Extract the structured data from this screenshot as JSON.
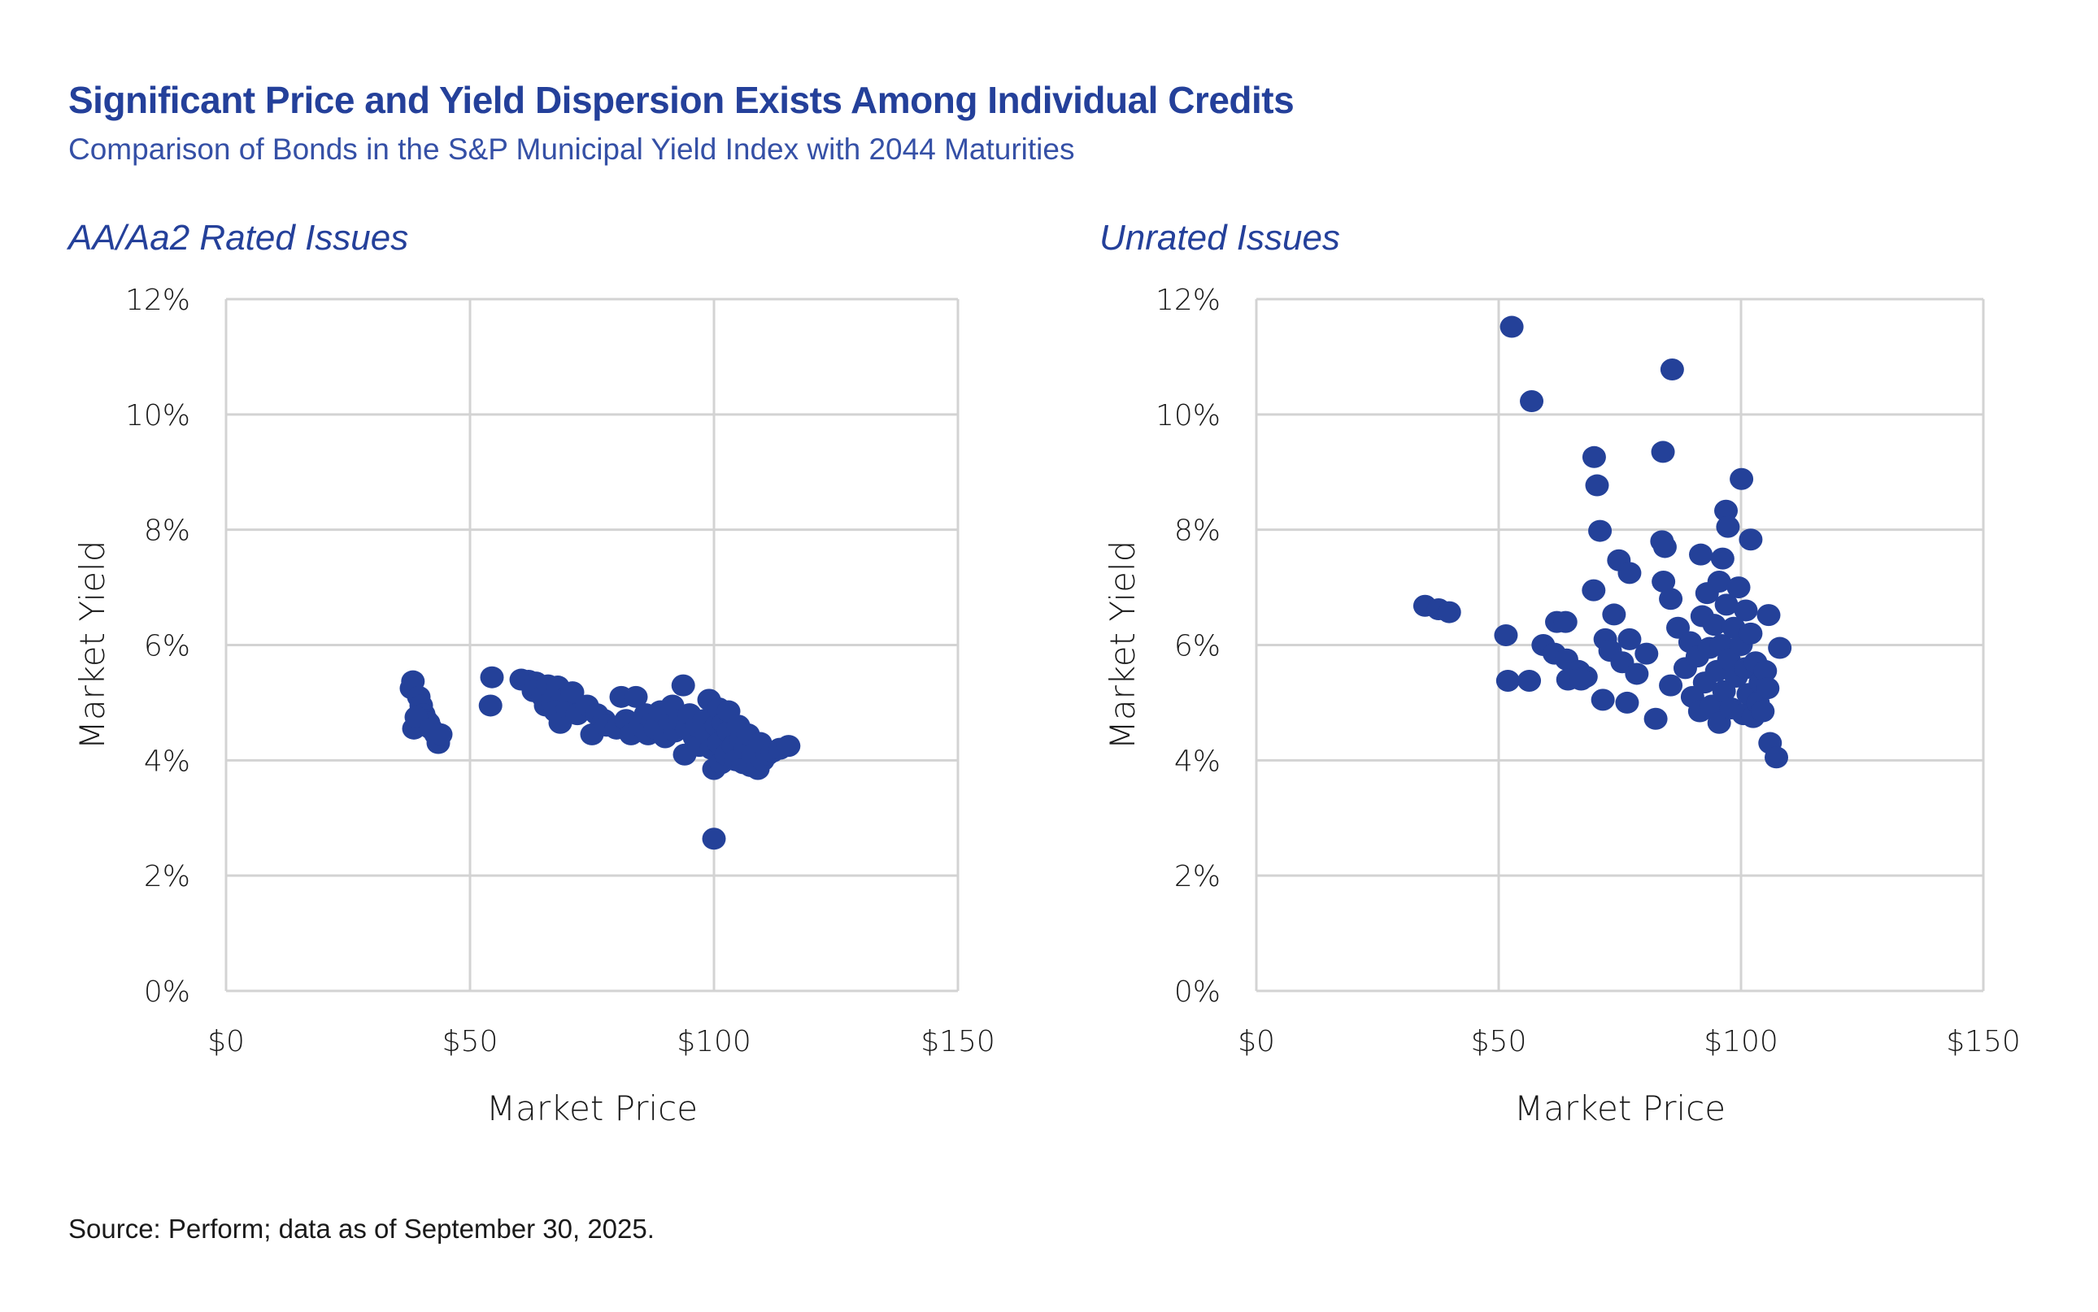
{
  "header": {
    "title": "Significant Price and Yield Dispersion Exists Among Individual Credits",
    "subtitle": "Comparison of Bonds in the S&P Municipal Yield Index with 2044 Maturities"
  },
  "footer": {
    "source": "Source: Perform; data as of September 30, 2025."
  },
  "colors": {
    "accent": "#24409a",
    "marker": "#244199",
    "grid": "#d3d3d3"
  },
  "chart_data": [
    {
      "type": "scatter",
      "title": "AA/Aa2 Rated Issues",
      "xlabel": "Market Price",
      "ylabel": "Market Yield",
      "xlim": [
        0,
        150
      ],
      "ylim": [
        0,
        12
      ],
      "xticks": [
        0,
        50,
        100,
        150
      ],
      "xtick_labels": [
        "$0",
        "$50",
        "$100",
        "$150"
      ],
      "yticks": [
        0,
        2,
        4,
        6,
        8,
        10,
        12
      ],
      "ytick_labels": [
        "0%",
        "2%",
        "4%",
        "6%",
        "8%",
        "10%",
        "12%"
      ],
      "grid": true,
      "legend": "none",
      "points": [
        [
          38.3,
          5.37
        ],
        [
          38.0,
          5.25
        ],
        [
          39.5,
          5.1
        ],
        [
          40.0,
          4.95
        ],
        [
          40.5,
          4.8
        ],
        [
          41.0,
          4.7
        ],
        [
          41.5,
          4.65
        ],
        [
          38.5,
          4.55
        ],
        [
          39.0,
          4.75
        ],
        [
          42.0,
          4.55
        ],
        [
          43.0,
          4.45
        ],
        [
          43.5,
          4.3
        ],
        [
          44.0,
          4.45
        ],
        [
          54.5,
          5.44
        ],
        [
          54.2,
          4.95
        ],
        [
          60.5,
          5.4
        ],
        [
          62.0,
          5.38
        ],
        [
          63.5,
          5.35
        ],
        [
          64.0,
          5.25
        ],
        [
          63.0,
          5.2
        ],
        [
          65.0,
          5.1
        ],
        [
          66.0,
          5.3
        ],
        [
          65.5,
          4.95
        ],
        [
          67.0,
          5.0
        ],
        [
          68.0,
          5.28
        ],
        [
          69.0,
          5.05
        ],
        [
          67.5,
          4.85
        ],
        [
          68.5,
          4.65
        ],
        [
          70.0,
          4.9
        ],
        [
          71.0,
          5.18
        ],
        [
          72.0,
          4.8
        ],
        [
          74.0,
          4.95
        ],
        [
          75.0,
          4.45
        ],
        [
          76.0,
          4.8
        ],
        [
          77.5,
          4.7
        ],
        [
          78.0,
          4.6
        ],
        [
          80.0,
          4.55
        ],
        [
          81.0,
          5.1
        ],
        [
          82.0,
          4.7
        ],
        [
          83.0,
          4.45
        ],
        [
          84.0,
          5.1
        ],
        [
          85.0,
          4.6
        ],
        [
          86.0,
          4.8
        ],
        [
          86.5,
          4.45
        ],
        [
          87.5,
          4.7
        ],
        [
          88.0,
          4.55
        ],
        [
          89.0,
          4.85
        ],
        [
          90.0,
          4.4
        ],
        [
          91.0,
          4.65
        ],
        [
          91.5,
          4.95
        ],
        [
          92.0,
          4.5
        ],
        [
          93.0,
          4.7
        ],
        [
          93.7,
          5.3
        ],
        [
          94.0,
          4.1
        ],
        [
          94.5,
          4.55
        ],
        [
          95.0,
          4.8
        ],
        [
          96.0,
          4.4
        ],
        [
          96.5,
          4.6
        ],
        [
          97.0,
          4.25
        ],
        [
          98.0,
          4.7
        ],
        [
          98.5,
          4.45
        ],
        [
          99.0,
          5.05
        ],
        [
          99.5,
          4.2
        ],
        [
          100.0,
          3.85
        ],
        [
          100.5,
          4.6
        ],
        [
          101.0,
          4.9
        ],
        [
          101.0,
          4.3
        ],
        [
          101.5,
          3.95
        ],
        [
          102.0,
          4.65
        ],
        [
          102.5,
          4.1
        ],
        [
          103.0,
          4.5
        ],
        [
          103.0,
          4.85
        ],
        [
          104.0,
          4.25
        ],
        [
          104.5,
          4.0
        ],
        [
          105.0,
          4.6
        ],
        [
          105.5,
          4.35
        ],
        [
          106.0,
          3.95
        ],
        [
          106.5,
          4.2
        ],
        [
          107.0,
          4.45
        ],
        [
          107.5,
          3.9
        ],
        [
          108.0,
          4.1
        ],
        [
          109.0,
          3.85
        ],
        [
          109.5,
          4.3
        ],
        [
          110.0,
          4.0
        ],
        [
          111.0,
          4.1
        ],
        [
          112.0,
          4.15
        ],
        [
          113.5,
          4.2
        ],
        [
          115.3,
          4.25
        ],
        [
          100.0,
          2.64
        ]
      ]
    },
    {
      "type": "scatter",
      "title": "Unrated Issues",
      "xlabel": "Market Price",
      "ylabel": "Market Yield",
      "xlim": [
        0,
        150
      ],
      "ylim": [
        0,
        12
      ],
      "xticks": [
        0,
        50,
        100,
        150
      ],
      "xtick_labels": [
        "$0",
        "$50",
        "$100",
        "$150"
      ],
      "yticks": [
        0,
        2,
        4,
        6,
        8,
        10,
        12
      ],
      "ytick_labels": [
        "0%",
        "2%",
        "4%",
        "6%",
        "8%",
        "10%",
        "12%"
      ],
      "grid": true,
      "legend": "none",
      "points": [
        [
          52.7,
          11.52
        ],
        [
          56.8,
          10.23
        ],
        [
          85.8,
          10.78
        ],
        [
          69.7,
          9.26
        ],
        [
          70.3,
          8.77
        ],
        [
          83.9,
          9.35
        ],
        [
          100.1,
          8.88
        ],
        [
          70.9,
          7.98
        ],
        [
          96.9,
          8.33
        ],
        [
          97.3,
          8.05
        ],
        [
          102.0,
          7.83
        ],
        [
          83.7,
          7.8
        ],
        [
          84.3,
          7.7
        ],
        [
          74.8,
          7.47
        ],
        [
          77.0,
          7.25
        ],
        [
          91.7,
          7.57
        ],
        [
          96.2,
          7.5
        ],
        [
          84.0,
          7.1
        ],
        [
          69.6,
          6.95
        ],
        [
          85.5,
          6.8
        ],
        [
          34.8,
          6.68
        ],
        [
          37.6,
          6.62
        ],
        [
          39.8,
          6.57
        ],
        [
          73.8,
          6.53
        ],
        [
          105.7,
          6.52
        ],
        [
          62.0,
          6.4
        ],
        [
          63.8,
          6.4
        ],
        [
          51.5,
          6.17
        ],
        [
          59.2,
          6.0
        ],
        [
          61.5,
          5.85
        ],
        [
          64.0,
          5.75
        ],
        [
          66.5,
          5.55
        ],
        [
          68.0,
          5.45
        ],
        [
          72.0,
          6.1
        ],
        [
          73.0,
          5.9
        ],
        [
          75.5,
          5.7
        ],
        [
          77.0,
          6.1
        ],
        [
          78.5,
          5.5
        ],
        [
          80.5,
          5.85
        ],
        [
          108.0,
          5.95
        ],
        [
          51.9,
          5.38
        ],
        [
          56.3,
          5.38
        ],
        [
          64.3,
          5.4
        ],
        [
          67.0,
          5.4
        ],
        [
          71.5,
          5.05
        ],
        [
          76.5,
          5.0
        ],
        [
          82.4,
          4.72
        ],
        [
          85.5,
          5.3
        ],
        [
          87.0,
          6.3
        ],
        [
          88.5,
          5.6
        ],
        [
          89.5,
          6.05
        ],
        [
          90.0,
          5.1
        ],
        [
          91.0,
          5.8
        ],
        [
          91.5,
          4.85
        ],
        [
          92.0,
          6.5
        ],
        [
          92.5,
          5.35
        ],
        [
          93.0,
          6.9
        ],
        [
          93.5,
          5.95
        ],
        [
          94.0,
          4.95
        ],
        [
          94.5,
          6.35
        ],
        [
          95.0,
          5.55
        ],
        [
          95.5,
          7.1
        ],
        [
          95.5,
          4.65
        ],
        [
          96.0,
          6.0
        ],
        [
          96.5,
          5.2
        ],
        [
          97.0,
          6.7
        ],
        [
          97.5,
          5.75
        ],
        [
          98.0,
          4.9
        ],
        [
          98.5,
          6.3
        ],
        [
          99.0,
          5.45
        ],
        [
          99.5,
          7.0
        ],
        [
          100.0,
          6.0
        ],
        [
          100.5,
          4.8
        ],
        [
          101.0,
          5.6
        ],
        [
          101.0,
          6.6
        ],
        [
          101.5,
          5.15
        ],
        [
          102.0,
          6.2
        ],
        [
          102.5,
          4.75
        ],
        [
          103.0,
          5.7
        ],
        [
          103.5,
          5.0
        ],
        [
          104.0,
          5.35
        ],
        [
          104.5,
          4.85
        ],
        [
          105.0,
          5.55
        ],
        [
          105.5,
          5.25
        ],
        [
          106.0,
          4.3
        ],
        [
          107.3,
          4.05
        ]
      ]
    }
  ]
}
